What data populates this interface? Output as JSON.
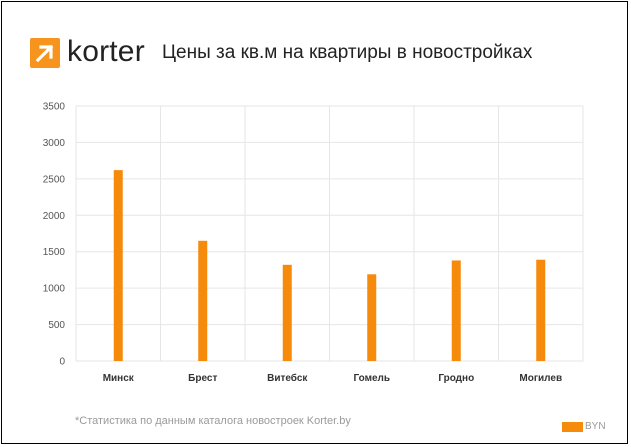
{
  "brand": {
    "name": "korter",
    "icon": "arrow-up-right-icon",
    "color": "#F7941D"
  },
  "header": {
    "title": "Цены за кв.м на квартиры в новостройках"
  },
  "footnote": "*Статистика по данным каталога новостроек Korter.by",
  "colors": {
    "bar": "#F58A0B",
    "grid": "#e6e6e6",
    "axis_text": "#555555"
  },
  "chart_data": {
    "type": "bar",
    "title": "Цены за кв.м на квартиры в новостройках",
    "xlabel": "",
    "ylabel": "",
    "categories": [
      "Минск",
      "Брест",
      "Витебск",
      "Гомель",
      "Гродно",
      "Могилев"
    ],
    "series": [
      {
        "name": "BYN",
        "values": [
          2620,
          1650,
          1320,
          1190,
          1380,
          1390
        ]
      }
    ],
    "ylim": [
      0,
      3500
    ],
    "yticks": [
      "0",
      "500",
      "1000",
      "1500",
      "2000",
      "2500",
      "3000",
      "3500"
    ],
    "grid": true,
    "legend_position": "bottom-right"
  }
}
